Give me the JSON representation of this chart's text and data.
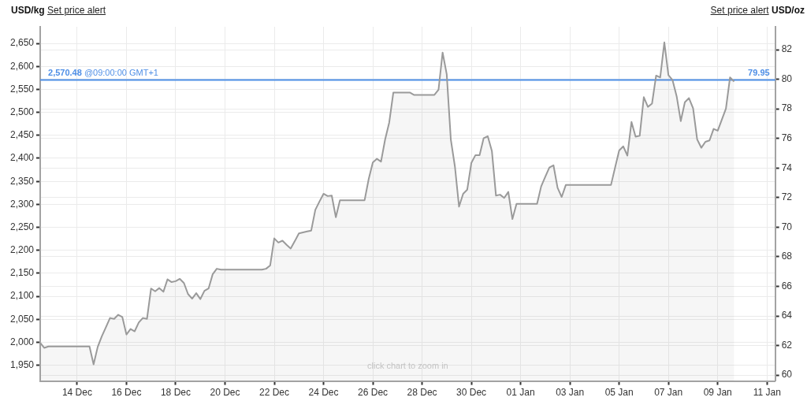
{
  "chart_data": {
    "type": "area",
    "ylabel": "USD/kg",
    "y2label": "USD/oz",
    "annotations": [
      "Set price alert",
      "Set price alert",
      "click chart to zoom in",
      {
        "text": "79.95",
        "y": 2570.48
      }
    ],
    "categories": [
      null,
      null,
      null,
      null,
      null,
      null,
      null,
      null,
      null,
      "14 Dec",
      null,
      null,
      null,
      null,
      null,
      null,
      null,
      null,
      null,
      null,
      null,
      "16 Dec",
      null,
      null,
      null,
      null,
      null,
      null,
      null,
      null,
      null,
      null,
      null,
      "18 Dec",
      null,
      null,
      null,
      null,
      null,
      null,
      null,
      null,
      null,
      null,
      null,
      "20 Dec",
      null,
      null,
      null,
      null,
      null,
      null,
      null,
      null,
      null,
      null,
      null,
      "22 Dec",
      null,
      null,
      null,
      null,
      null,
      null,
      null,
      null,
      null,
      null,
      null,
      "24 Dec",
      null,
      null,
      null,
      null,
      null,
      null,
      null,
      null,
      null,
      null,
      null,
      "26 Dec",
      null,
      null,
      null,
      null,
      null,
      null,
      null,
      null,
      null,
      null,
      null,
      "28 Dec",
      null,
      null,
      null,
      null,
      null,
      null,
      null,
      null,
      null,
      null,
      null,
      "30 Dec",
      null,
      null,
      null,
      null,
      null,
      null,
      null,
      null,
      null,
      null,
      null,
      "01 Jan",
      null,
      null,
      null,
      null,
      null,
      null,
      null,
      null,
      null,
      null,
      null,
      "03 Jan",
      null,
      null,
      null,
      null,
      null,
      null,
      null,
      null,
      null,
      null,
      null,
      "05 Jan",
      null,
      null,
      null,
      null,
      null,
      null,
      null,
      null,
      null,
      null,
      null,
      "07 Jan",
      null,
      null,
      null,
      null,
      null,
      null,
      null,
      null,
      null,
      null,
      null,
      "09 Jan",
      null,
      null,
      null,
      null,
      null,
      null,
      null,
      null,
      null,
      null,
      null,
      "11 Jan",
      null,
      null
    ],
    "series": [
      {
        "color": "#9a9a9a",
        "values": [
          1999,
          1988,
          1991,
          1991,
          1991,
          1991,
          1991,
          1991,
          1991,
          1991,
          1991,
          1991,
          1991,
          1952,
          1990,
          2013,
          2033,
          2053,
          2051,
          2060,
          2055,
          2017,
          2029,
          2024,
          2043,
          2053,
          2051,
          2117,
          2111,
          2118,
          2110,
          2137,
          2131,
          2133,
          2138,
          2129,
          2105,
          2095,
          2107,
          2094,
          2112,
          2117,
          2148,
          2160,
          2158,
          2158,
          2158,
          2158,
          2158,
          2158,
          2158,
          2158,
          2158,
          2158,
          2158,
          2160,
          2167,
          2226,
          2217,
          2221,
          2212,
          2204,
          2220,
          2237,
          2239,
          2241,
          2243,
          2288,
          2306,
          2323,
          2318,
          2319,
          2272,
          2309,
          2309,
          2309,
          2309,
          2309,
          2309,
          2309,
          2355,
          2391,
          2399,
          2393,
          2441,
          2478,
          2543,
          2543,
          2543,
          2543,
          2543,
          2538,
          2538,
          2538,
          2538,
          2538,
          2538,
          2549,
          2630,
          2583,
          2441,
          2382,
          2295,
          2323,
          2332,
          2390,
          2407,
          2407,
          2444,
          2448,
          2416,
          2319,
          2321,
          2314,
          2327,
          2268,
          2301,
          2301,
          2301,
          2301,
          2301,
          2301,
          2339,
          2360,
          2380,
          2385,
          2336,
          2316,
          2342,
          2342,
          2342,
          2342,
          2342,
          2342,
          2342,
          2342,
          2342,
          2342,
          2342,
          2342,
          2380,
          2417,
          2426,
          2406,
          2479,
          2447,
          2449,
          2533,
          2512,
          2519,
          2580,
          2576,
          2652,
          2581,
          2570,
          2535,
          2481,
          2522,
          2531,
          2509,
          2441,
          2423,
          2436,
          2439,
          2464,
          2460,
          2484,
          2508,
          2576,
          2567,
          null,
          null,
          null,
          null,
          null,
          null,
          null,
          null,
          null,
          null
        ]
      }
    ],
    "ylim": [
      1916,
      2686
    ],
    "yticks": [
      {
        "value": 1950,
        "label": "1,950"
      },
      {
        "value": 2000,
        "label": "2,000"
      },
      {
        "value": 2050,
        "label": "2,050"
      },
      {
        "value": 2100,
        "label": "2,100"
      },
      {
        "value": 2150,
        "label": "2,150"
      },
      {
        "value": 2200,
        "label": "2,200"
      },
      {
        "value": 2250,
        "label": "2,250"
      },
      {
        "value": 2300,
        "label": "2,300"
      },
      {
        "value": 2350,
        "label": "2,350"
      },
      {
        "value": 2400,
        "label": "2,400"
      },
      {
        "value": 2450,
        "label": "2,450"
      },
      {
        "value": 2500,
        "label": "2,500"
      },
      {
        "value": 2550,
        "label": "2,550"
      },
      {
        "value": 2600,
        "label": "2,600"
      },
      {
        "value": 2650,
        "label": "2,650"
      }
    ],
    "y2lim": [
      59.6,
      83.55
    ],
    "y2ticks": [
      60,
      62,
      64,
      66,
      68,
      70,
      72,
      74,
      76,
      78,
      80,
      82
    ],
    "ref_lines": [
      {
        "axis": "y",
        "value": 2570.48,
        "label": "2,570.48 @09:00:00 GMT+1",
        "color": "#4f8fe6"
      }
    ],
    "grid": true
  }
}
